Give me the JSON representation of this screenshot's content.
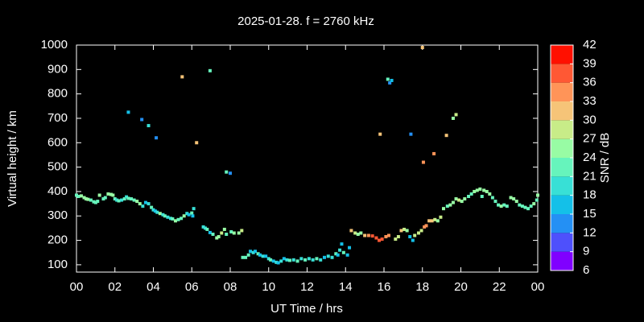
{
  "chart_data": {
    "type": "scatter",
    "title": "2025-01-28. f = 2760 kHz",
    "x_label": "UT Time / hrs",
    "y_label": "Virtual height / km",
    "xlim": [
      0,
      24
    ],
    "xticks": [
      {
        "value": 0,
        "label": "00"
      },
      {
        "value": 2,
        "label": "02"
      },
      {
        "value": 4,
        "label": "04"
      },
      {
        "value": 6,
        "label": "06"
      },
      {
        "value": 8,
        "label": "08"
      },
      10,
      12,
      14,
      16,
      18,
      20,
      22,
      {
        "value": 24,
        "label": "00"
      }
    ],
    "ylim": [
      70,
      1000
    ],
    "yticks": [
      100,
      200,
      300,
      400,
      500,
      600,
      700,
      800,
      900,
      1000
    ],
    "grid": false,
    "colorbar": {
      "label": "SNR / dB",
      "lim": [
        6,
        42
      ],
      "ticks": [
        6,
        9,
        12,
        15,
        18,
        21,
        24,
        27,
        30,
        33,
        36,
        39,
        42
      ],
      "colors": [
        "#8000ff",
        "#4e50fc",
        "#2490f4",
        "#14c0e8",
        "#38e0d6",
        "#66f4bc",
        "#98fca4",
        "#c8ec88",
        "#f6c478",
        "#ff9458",
        "#ff5834",
        "#ff1000"
      ]
    },
    "x": [
      0.0,
      0.1,
      0.25,
      0.4,
      0.5,
      0.6,
      0.75,
      0.9,
      1.0,
      1.1,
      1.2,
      1.4,
      1.5,
      1.65,
      1.8,
      1.9,
      2.0,
      2.1,
      2.2,
      2.35,
      2.5,
      2.6,
      2.7,
      2.85,
      3.0,
      3.15,
      3.3,
      3.45,
      3.6,
      3.75,
      3.9,
      4.0,
      4.1,
      4.2,
      4.35,
      4.5,
      4.6,
      4.75,
      4.9,
      5.0,
      5.15,
      5.3,
      5.45,
      5.6,
      5.75,
      5.85,
      6.0,
      6.1,
      6.05,
      6.6,
      6.7,
      6.8,
      6.95,
      7.1,
      7.3,
      7.4,
      7.55,
      7.7,
      7.8,
      8.05,
      8.2,
      8.45,
      8.6,
      8.65,
      8.8,
      8.95,
      9.05,
      9.2,
      9.3,
      9.45,
      9.55,
      9.7,
      9.85,
      10.0,
      10.1,
      10.25,
      10.4,
      10.5,
      10.65,
      10.8,
      10.95,
      11.1,
      11.3,
      11.5,
      11.7,
      11.9,
      12.1,
      12.3,
      12.5,
      12.7,
      12.9,
      13.1,
      13.3,
      13.5,
      13.6,
      13.7,
      13.8,
      13.9,
      14.1,
      14.2,
      14.3,
      14.5,
      14.65,
      14.8,
      15.0,
      15.2,
      15.4,
      15.6,
      15.75,
      15.9,
      16.1,
      16.25,
      16.6,
      16.75,
      16.9,
      17.05,
      17.2,
      17.35,
      17.5,
      17.6,
      17.8,
      17.95,
      18.1,
      18.2,
      18.35,
      18.5,
      18.65,
      18.8,
      18.95,
      19.1,
      19.3,
      19.45,
      19.6,
      19.75,
      19.9,
      20.05,
      20.2,
      20.4,
      20.55,
      20.7,
      20.85,
      21.0,
      21.1,
      21.2,
      21.35,
      21.5,
      21.65,
      21.8,
      21.95,
      22.1,
      22.25,
      22.4,
      22.6,
      22.75,
      22.9,
      23.05,
      23.2,
      23.35,
      23.5,
      23.65,
      23.8,
      23.95,
      24.0,
      2.7,
      3.4,
      3.75,
      4.15,
      5.5,
      6.95,
      6.25,
      7.8,
      8.0,
      15.8,
      16.2,
      16.3,
      16.4,
      17.4,
      18.0,
      18.05,
      18.6,
      19.25,
      19.6,
      19.75
    ],
    "y": [
      385,
      380,
      382,
      375,
      370,
      368,
      365,
      358,
      355,
      360,
      385,
      370,
      375,
      390,
      388,
      385,
      370,
      365,
      362,
      365,
      370,
      378,
      372,
      370,
      365,
      360,
      350,
      340,
      355,
      350,
      335,
      325,
      320,
      315,
      310,
      305,
      300,
      295,
      290,
      288,
      280,
      285,
      290,
      300,
      310,
      305,
      312,
      330,
      300,
      255,
      250,
      245,
      232,
      225,
      210,
      215,
      230,
      245,
      225,
      235,
      230,
      230,
      240,
      130,
      130,
      140,
      155,
      150,
      155,
      145,
      140,
      135,
      135,
      125,
      120,
      115,
      110,
      108,
      115,
      125,
      120,
      118,
      120,
      115,
      125,
      120,
      125,
      120,
      125,
      120,
      130,
      135,
      130,
      145,
      140,
      160,
      185,
      150,
      140,
      170,
      240,
      230,
      225,
      230,
      220,
      220,
      218,
      210,
      200,
      205,
      215,
      220,
      205,
      215,
      240,
      245,
      240,
      215,
      200,
      220,
      230,
      240,
      255,
      260,
      280,
      280,
      285,
      280,
      295,
      330,
      340,
      345,
      355,
      370,
      365,
      360,
      370,
      380,
      390,
      400,
      405,
      410,
      380,
      405,
      400,
      390,
      375,
      360,
      345,
      340,
      345,
      340,
      375,
      370,
      360,
      345,
      340,
      335,
      330,
      340,
      350,
      365,
      385,
      725,
      695,
      670,
      620,
      870,
      895,
      600,
      480,
      475,
      635,
      860,
      845,
      855,
      635,
      990,
      520,
      555,
      630,
      700,
      715
    ],
    "snr": [
      21,
      21,
      24,
      24,
      24,
      24,
      21,
      21,
      21,
      21,
      24,
      21,
      21,
      24,
      24,
      24,
      21,
      18,
      21,
      18,
      21,
      18,
      21,
      21,
      21,
      24,
      24,
      18,
      15,
      18,
      21,
      18,
      15,
      18,
      24,
      18,
      21,
      18,
      18,
      21,
      24,
      21,
      21,
      24,
      18,
      15,
      21,
      18,
      15,
      18,
      18,
      21,
      15,
      21,
      24,
      24,
      27,
      24,
      21,
      21,
      24,
      24,
      27,
      21,
      21,
      21,
      15,
      18,
      15,
      21,
      15,
      18,
      15,
      18,
      21,
      15,
      18,
      15,
      18,
      15,
      18,
      21,
      18,
      21,
      18,
      21,
      18,
      18,
      21,
      18,
      15,
      18,
      18,
      21,
      15,
      18,
      15,
      21,
      15,
      15,
      30,
      27,
      24,
      24,
      30,
      33,
      36,
      36,
      36,
      36,
      33,
      33,
      27,
      27,
      30,
      27,
      24,
      15,
      15,
      27,
      27,
      27,
      33,
      33,
      30,
      30,
      27,
      24,
      27,
      24,
      21,
      24,
      24,
      24,
      27,
      24,
      24,
      21,
      21,
      24,
      24,
      24,
      21,
      24,
      24,
      24,
      21,
      21,
      21,
      24,
      21,
      21,
      24,
      24,
      24,
      21,
      21,
      21,
      21,
      21,
      24,
      21,
      24,
      15,
      12,
      18,
      12,
      30,
      21,
      30,
      21,
      12,
      30,
      21,
      12,
      15,
      12,
      30,
      33,
      33,
      30,
      24,
      27
    ]
  }
}
